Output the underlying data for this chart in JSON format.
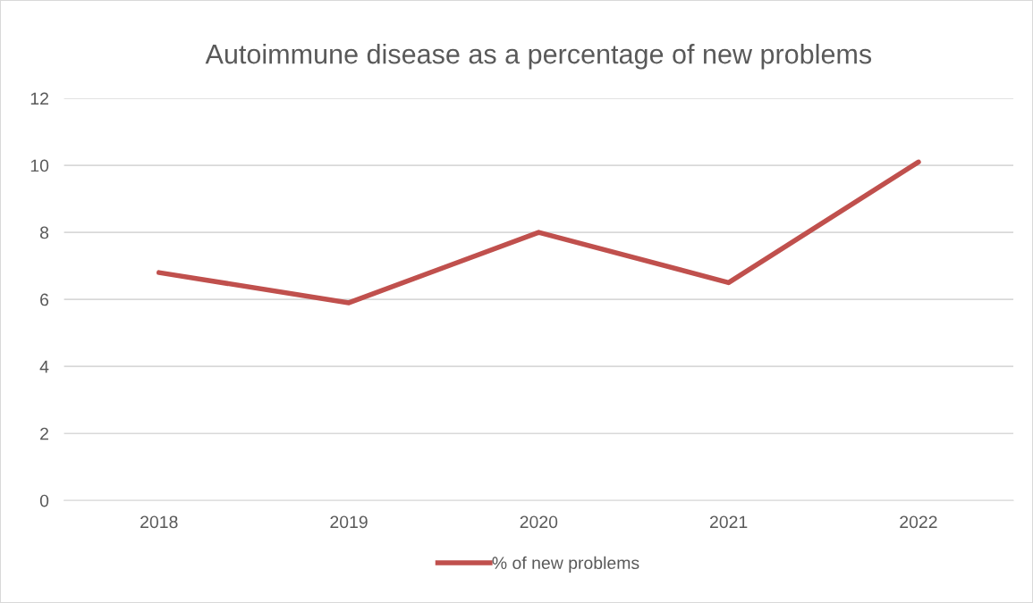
{
  "chart_data": {
    "type": "line",
    "title": "Autoimmune disease as a percentage of new problems",
    "categories": [
      "2018",
      "2019",
      "2020",
      "2021",
      "2022"
    ],
    "series": [
      {
        "name": "% of new problems",
        "color": "#c0504d",
        "values": [
          6.8,
          5.9,
          8.0,
          6.5,
          10.1
        ]
      }
    ],
    "ylim": [
      0,
      12
    ],
    "yticks": [
      0,
      2,
      4,
      6,
      8,
      10,
      12
    ],
    "grid": "y",
    "legend": "bottom",
    "marker": "none",
    "line_style": "solid"
  }
}
